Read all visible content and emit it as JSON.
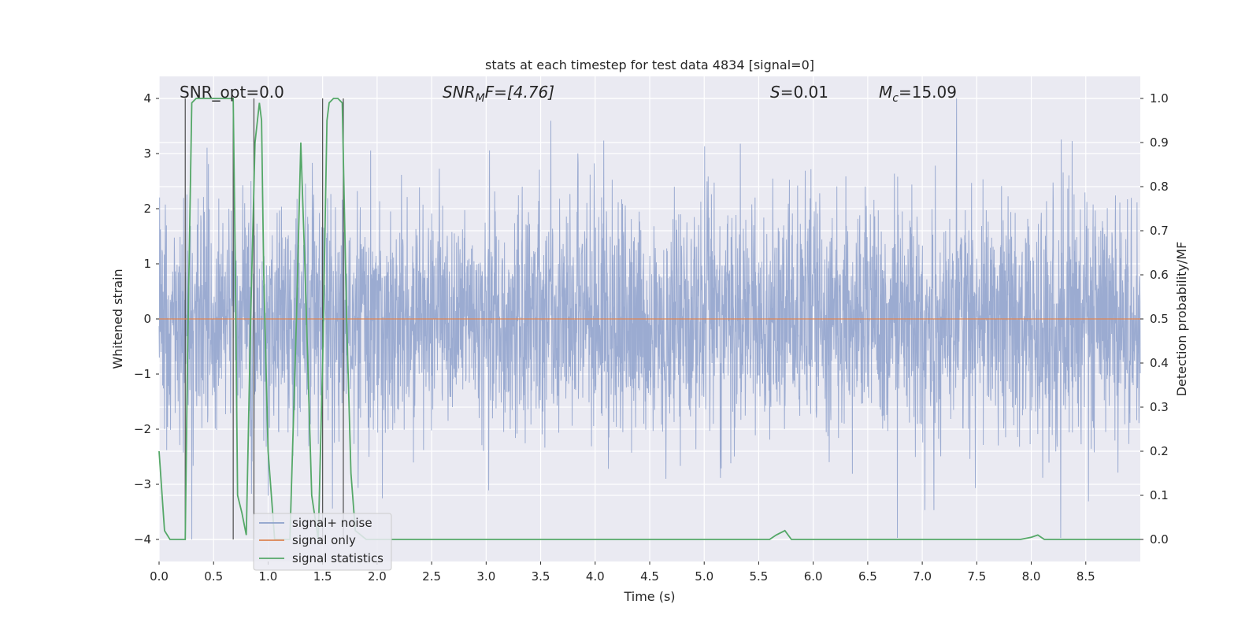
{
  "chart_data": {
    "type": "line",
    "title": "stats at each timestep for test data 4834 [signal=0]",
    "xlabel": "Time (s)",
    "ylabel_left": "Whitened strain",
    "ylabel_right": "Detection probability/MF",
    "xlim": [
      0,
      9.0
    ],
    "ylim_left": [
      -4.4,
      4.4
    ],
    "ylim_right": [
      -0.05,
      1.05
    ],
    "grid": true,
    "x_ticks": [
      0.0,
      0.5,
      1.0,
      1.5,
      2.0,
      2.5,
      3.0,
      3.5,
      4.0,
      4.5,
      5.0,
      5.5,
      6.0,
      6.5,
      7.0,
      7.5,
      8.0,
      8.5
    ],
    "x_tick_labels": [
      "0.0",
      "0.5",
      "1.0",
      "1.5",
      "2.0",
      "2.5",
      "3.0",
      "3.5",
      "4.0",
      "4.5",
      "5.0",
      "5.5",
      "6.0",
      "6.5",
      "7.0",
      "7.5",
      "8.0",
      "8.5"
    ],
    "y_left_ticks": [
      -4,
      -3,
      -2,
      -1,
      0,
      1,
      2,
      3,
      4
    ],
    "y_left_tick_labels": [
      "−4",
      "−3",
      "−2",
      "−1",
      "0",
      "1",
      "2",
      "3",
      "4"
    ],
    "y_right_ticks": [
      0.0,
      0.1,
      0.2,
      0.3,
      0.4,
      0.5,
      0.6,
      0.7,
      0.8,
      0.9,
      1.0
    ],
    "y_right_tick_labels": [
      "0.0",
      "0.1",
      "0.2",
      "0.3",
      "0.4",
      "0.5",
      "0.6",
      "0.7",
      "0.8",
      "0.9",
      "1.0"
    ],
    "annotations": {
      "snr_opt": "SNR_opt=0.0",
      "snr_mf_symbol": "SNR",
      "snr_mf_sub": "M",
      "snr_mf_rest": "F=[4.76]",
      "s_symbol": "S",
      "s_rest": "=0.01",
      "mc_symbol": "M",
      "mc_sub": "c",
      "mc_rest": "=15.09"
    },
    "legend": {
      "position": "lower-left",
      "entries": [
        "signal+ noise",
        "signal only",
        "signal statistics"
      ]
    },
    "series": [
      {
        "name": "signal+ noise",
        "color": "#8da0cb",
        "description": "whitened strain noise, approx. Gaussian with amplitude within ±4",
        "noise_envelope": [
          -1.6,
          1.6
        ],
        "peak_range": [
          -4.0,
          4.0
        ],
        "seed": 4834
      },
      {
        "name": "signal only",
        "color": "#dd8452",
        "values_constant": 0.0
      },
      {
        "name": "signal statistics",
        "color": "#55a868",
        "axis": "right",
        "x": [
          0.0,
          0.05,
          0.1,
          0.2,
          0.24,
          0.26,
          0.3,
          0.34,
          0.4,
          0.5,
          0.6,
          0.68,
          0.7,
          0.72,
          0.76,
          0.8,
          0.84,
          0.88,
          0.92,
          0.94,
          0.96,
          1.0,
          1.06,
          1.12,
          1.2,
          1.26,
          1.3,
          1.34,
          1.4,
          1.46,
          1.5,
          1.54,
          1.56,
          1.6,
          1.64,
          1.68,
          1.72,
          1.76,
          1.8,
          1.9,
          2.0,
          3.0,
          4.0,
          5.0,
          5.6,
          5.66,
          5.74,
          5.8,
          6.0,
          7.0,
          7.9,
          8.0,
          8.06,
          8.12,
          8.2,
          9.0
        ],
        "values": [
          0.2,
          0.02,
          0.0,
          0.0,
          0.0,
          0.4,
          0.99,
          1.0,
          1.0,
          1.0,
          1.0,
          1.0,
          0.6,
          0.1,
          0.06,
          0.01,
          0.5,
          0.9,
          0.99,
          0.95,
          0.6,
          0.2,
          0.0,
          0.0,
          0.0,
          0.5,
          0.9,
          0.6,
          0.1,
          0.0,
          0.4,
          0.95,
          0.99,
          1.0,
          1.0,
          0.99,
          0.5,
          0.15,
          0.02,
          0.0,
          0.0,
          0.0,
          0.0,
          0.0,
          0.0,
          0.01,
          0.02,
          0.0,
          0.0,
          0.0,
          0.0,
          0.005,
          0.01,
          0.0,
          0.0,
          0.0
        ]
      }
    ],
    "vertical_markers": [
      0.24,
      0.68,
      0.87,
      1.5,
      1.69
    ]
  }
}
